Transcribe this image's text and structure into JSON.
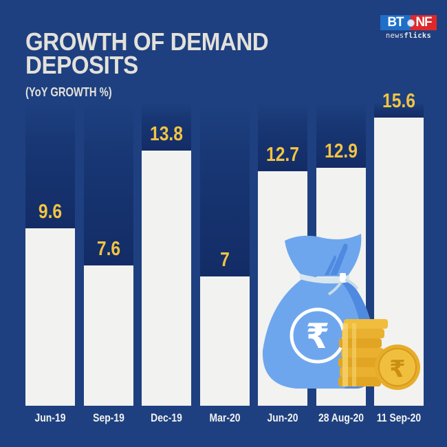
{
  "header": {
    "title": "GROWTH OF DEMAND\nDEPOSITS",
    "subtitle": "(YoY GROWTH %)"
  },
  "logo": {
    "left": "BT",
    "right": "NF",
    "sub_regular": "news",
    "sub_bold": "flicks"
  },
  "colors": {
    "background": "#1e4080",
    "bar": "#f2f2f0",
    "value_label": "#f3c443",
    "title": "#e3e1da"
  },
  "chart_data": {
    "type": "bar",
    "title": "GROWTH OF DEMAND DEPOSITS",
    "subtitle": "(YoY GROWTH %)",
    "xlabel": "",
    "ylabel": "YoY Growth %",
    "categories": [
      "Jun-19",
      "Sep-19",
      "Dec-19",
      "Mar-20",
      "Jun-20",
      "28 Aug-20",
      "11 Sep-20"
    ],
    "values": [
      9.6,
      7.6,
      13.8,
      7,
      12.7,
      12.9,
      15.6
    ],
    "value_labels": [
      "9.6",
      "7.6",
      "13.8",
      "7",
      "12.7",
      "12.9",
      "15.6"
    ],
    "grid": false,
    "legend": "none",
    "ylim": [
      0,
      16
    ]
  },
  "illustration": {
    "description": "blue money bag with rupee symbol and stack of gold rupee coins",
    "symbol": "₹"
  }
}
